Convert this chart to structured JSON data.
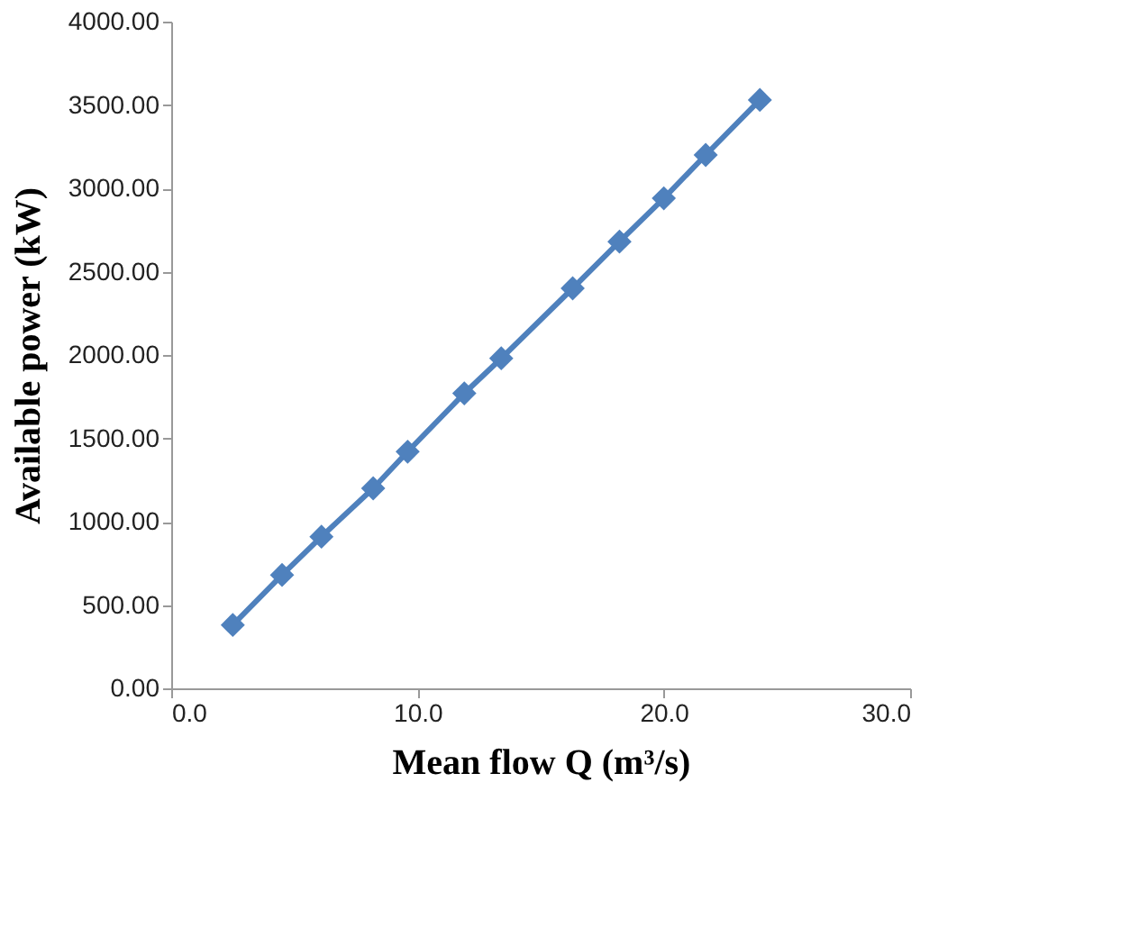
{
  "chart_data": {
    "type": "line",
    "xlabel": "Mean flow Q (m³/s)",
    "ylabel": "Available power (kW)",
    "x": [
      2.5,
      4.5,
      6.1,
      8.2,
      9.6,
      11.9,
      13.4,
      16.3,
      18.2,
      20.0,
      21.7,
      23.9
    ],
    "series": [
      {
        "color": "#4f81bd",
        "values": [
          380,
          680,
          910,
          1200,
          1420,
          1770,
          1980,
          2400,
          2680,
          2940,
          3200,
          3530
        ]
      }
    ],
    "xlim": [
      0,
      30
    ],
    "ylim": [
      0,
      4000
    ],
    "xticks": [
      {
        "value": 0,
        "label": "0.0"
      },
      {
        "value": 10,
        "label": "10.0"
      },
      {
        "value": 20,
        "label": "20.0"
      },
      {
        "value": 30,
        "label": "30.0"
      }
    ],
    "yticks": [
      {
        "value": 0,
        "label": "0.00"
      },
      {
        "value": 500,
        "label": "500.00"
      },
      {
        "value": 1000,
        "label": "1000.00"
      },
      {
        "value": 1500,
        "label": "1500.00"
      },
      {
        "value": 2000,
        "label": "2000.00"
      },
      {
        "value": 2500,
        "label": "2500.00"
      },
      {
        "value": 3000,
        "label": "3000.00"
      },
      {
        "value": 3500,
        "label": "3500.00"
      },
      {
        "value": 4000,
        "label": "4000.00"
      }
    ],
    "grid": false,
    "marker": "diamond",
    "line_style": "solid"
  }
}
